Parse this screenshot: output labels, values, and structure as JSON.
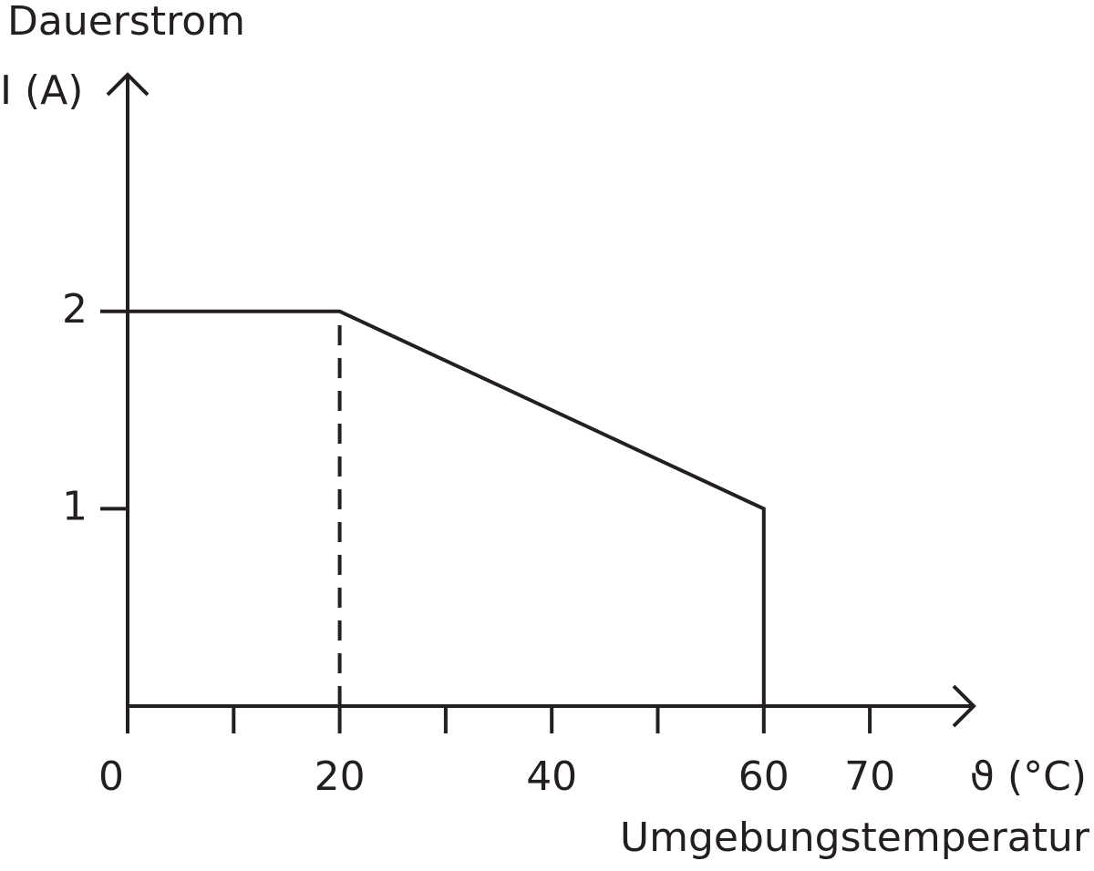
{
  "chart_data": {
    "type": "line",
    "ylabel": "Dauerstrom",
    "yunit": "I (A)",
    "xunit": "ϑ (°C)",
    "xlabel": "Umgebungstemperatur",
    "series": [
      {
        "x": [
          0,
          20,
          60,
          60
        ],
        "values": [
          2,
          2,
          1,
          0
        ],
        "color": "#231f20"
      },
      {
        "x": [
          20,
          20
        ],
        "values": [
          0,
          2
        ],
        "color": "#231f20",
        "dashed": true
      }
    ],
    "xlim": [
      0,
      80
    ],
    "ylim": [
      0,
      3.2
    ],
    "xticks": [
      0,
      20,
      40,
      60,
      70
    ],
    "xminorticks": [
      10,
      30,
      50
    ],
    "yticks": [
      1,
      2
    ]
  }
}
